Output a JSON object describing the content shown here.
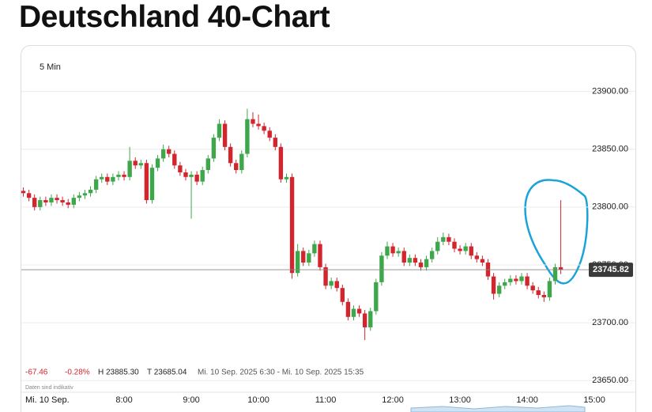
{
  "header": {
    "title": "Deutschland 40-Chart"
  },
  "chart_data": {
    "type": "candlestick",
    "interval": "5 Min",
    "stats": {
      "change": "-67.46",
      "change_pct": "-0.28%",
      "high": "H 23885.30",
      "low": "T 23685.04",
      "range": "Mi. 10 Sep. 2025 6:30 - Mi. 10 Sep. 2025 15:35"
    },
    "note": "Daten sind indikativ",
    "date": "Mi. 10 Sep.",
    "up_color": "#3ea74c",
    "down_color": "#d2262f",
    "ylim": [
      23644,
      23938
    ],
    "yticks": [
      {
        "value": 23650,
        "label": "23650.00"
      },
      {
        "value": 23700,
        "label": "23700.00"
      },
      {
        "value": 23750,
        "label": "23750.00"
      },
      {
        "value": 23800,
        "label": "23800.00"
      },
      {
        "value": 23850,
        "label": "23850.00"
      },
      {
        "value": 23900,
        "label": "23900.00"
      }
    ],
    "xlim": [
      -0.5,
      101
    ],
    "xticks": [
      {
        "value": 18,
        "label": "8:00"
      },
      {
        "value": 30,
        "label": "9:00"
      },
      {
        "value": 42,
        "label": "10:00"
      },
      {
        "value": 54,
        "label": "11:00"
      },
      {
        "value": 66,
        "label": "12:00"
      },
      {
        "value": 78,
        "label": "13:00"
      },
      {
        "value": 90,
        "label": "14:00"
      },
      {
        "value": 102,
        "label": "15:00"
      }
    ],
    "grid": true,
    "candles": {
      "open": [
        23814,
        23812,
        23808,
        23800,
        23806,
        23804,
        23808,
        23806,
        23804,
        23802,
        23808,
        23810,
        23812,
        23815,
        23824,
        23826,
        23822,
        23826,
        23828,
        23826,
        23840,
        23836,
        23838,
        23806,
        23834,
        23842,
        23850,
        23846,
        23836,
        23830,
        23826,
        23828,
        23822,
        23832,
        23842,
        23860,
        23872,
        23852,
        23838,
        23832,
        23846,
        23876,
        23872,
        23870,
        23866,
        23860,
        23852,
        23824,
        23826,
        23743,
        23762,
        23752,
        23760,
        23768,
        23748,
        23732,
        23736,
        23730,
        23718,
        23705,
        23712,
        23708,
        23696,
        23710,
        23735,
        23758,
        23766,
        23760,
        23762,
        23752,
        23756,
        23752,
        23748,
        23755,
        23762,
        23770,
        23774,
        23770,
        23764,
        23762,
        23766,
        23758,
        23755,
        23752,
        23740,
        23725,
        23732,
        23735,
        23738,
        23736,
        23740,
        23732,
        23728,
        23724,
        23722,
        23736,
        23748
      ],
      "high": [
        23817,
        23815,
        23811,
        23809,
        23809,
        23811,
        23811,
        23809,
        23807,
        23811,
        23813,
        23815,
        23818,
        23827,
        23829,
        23829,
        23829,
        23831,
        23831,
        23852,
        23843,
        23841,
        23841,
        23837,
        23845,
        23854,
        23853,
        23849,
        23839,
        23833,
        23831,
        23831,
        23835,
        23845,
        23863,
        23876,
        23875,
        23855,
        23841,
        23849,
        23885,
        23882,
        23880,
        23873,
        23869,
        23863,
        23855,
        23829,
        23829,
        23768,
        23765,
        23763,
        23771,
        23771,
        23751,
        23739,
        23739,
        23733,
        23721,
        23715,
        23715,
        23711,
        23713,
        23738,
        23761,
        23770,
        23769,
        23765,
        23765,
        23759,
        23759,
        23755,
        23758,
        23765,
        23774,
        23778,
        23777,
        23773,
        23767,
        23769,
        23769,
        23761,
        23758,
        23755,
        23743,
        23735,
        23738,
        23741,
        23741,
        23743,
        23743,
        23735,
        23731,
        23727,
        23739,
        23751,
        23806
      ],
      "low": [
        23809,
        23805,
        23797,
        23797,
        23801,
        23801,
        23803,
        23801,
        23799,
        23799,
        23805,
        23807,
        23809,
        23812,
        23821,
        23819,
        23819,
        23823,
        23823,
        23823,
        23833,
        23833,
        23803,
        23803,
        23831,
        23839,
        23843,
        23833,
        23827,
        23823,
        23790,
        23819,
        23819,
        23829,
        23839,
        23857,
        23849,
        23835,
        23829,
        23829,
        23843,
        23869,
        23867,
        23863,
        23857,
        23849,
        23821,
        23821,
        23738,
        23740,
        23749,
        23749,
        23757,
        23745,
        23729,
        23729,
        23727,
        23715,
        23702,
        23702,
        23705,
        23685,
        23693,
        23707,
        23732,
        23755,
        23757,
        23757,
        23749,
        23749,
        23749,
        23745,
        23745,
        23752,
        23759,
        23767,
        23767,
        23761,
        23759,
        23759,
        23755,
        23752,
        23749,
        23737,
        23720,
        23722,
        23729,
        23732,
        23733,
        23733,
        23729,
        23725,
        23721,
        23718,
        23719,
        23733,
        23742
      ],
      "close": [
        23812,
        23808,
        23800,
        23806,
        23804,
        23808,
        23806,
        23804,
        23802,
        23808,
        23810,
        23812,
        23815,
        23824,
        23826,
        23822,
        23826,
        23828,
        23826,
        23840,
        23836,
        23838,
        23806,
        23834,
        23842,
        23850,
        23846,
        23836,
        23830,
        23826,
        23828,
        23822,
        23832,
        23842,
        23860,
        23872,
        23852,
        23838,
        23832,
        23846,
        23876,
        23872,
        23870,
        23866,
        23860,
        23852,
        23824,
        23826,
        23743,
        23762,
        23752,
        23760,
        23768,
        23748,
        23732,
        23736,
        23730,
        23718,
        23705,
        23712,
        23708,
        23696,
        23710,
        23735,
        23758,
        23766,
        23760,
        23762,
        23752,
        23756,
        23752,
        23748,
        23755,
        23762,
        23770,
        23774,
        23770,
        23764,
        23762,
        23766,
        23758,
        23755,
        23752,
        23740,
        23725,
        23732,
        23735,
        23738,
        23736,
        23740,
        23732,
        23728,
        23724,
        23722,
        23736,
        23748,
        23745.82
      ]
    }
  }
}
